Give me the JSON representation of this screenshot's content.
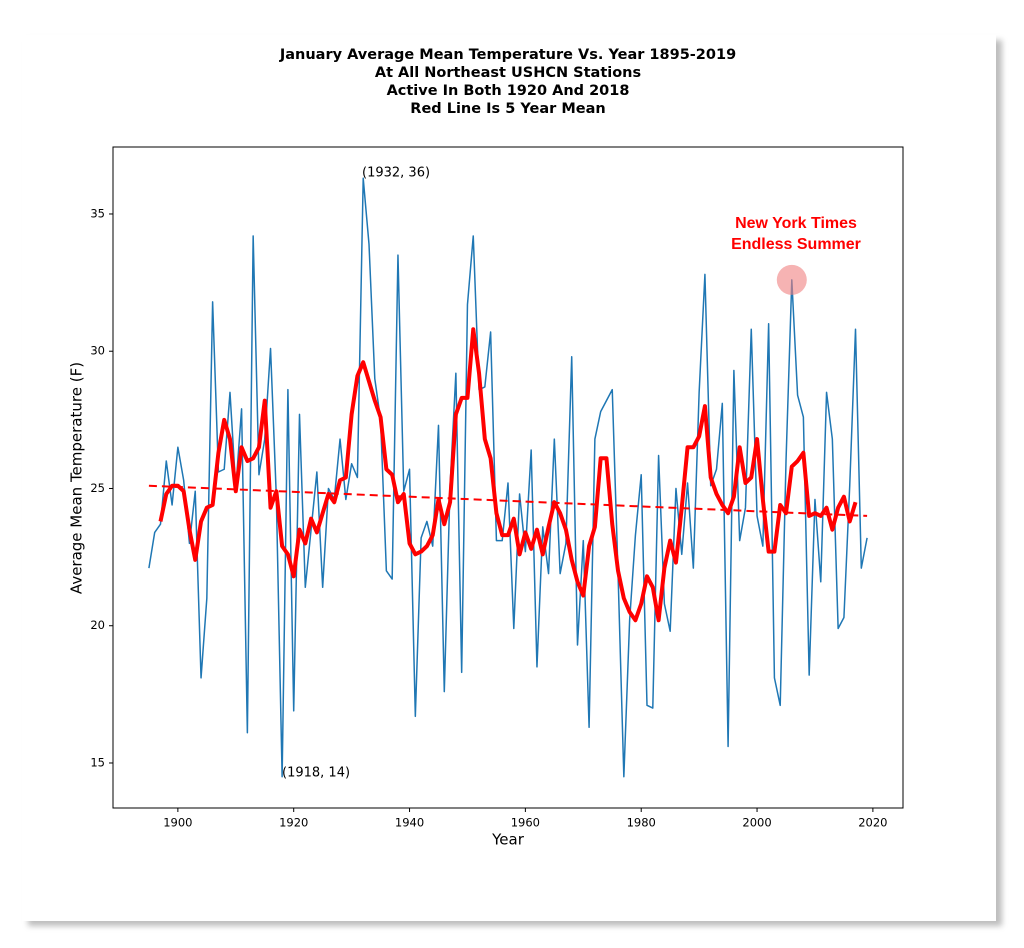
{
  "chart_data": {
    "type": "line",
    "title": [
      "January Average Mean Temperature Vs. Year 1895-2019",
      "At All Northeast USHCN Stations",
      "Active In Both 1920 And 2018",
      "Red Line Is 5 Year Mean"
    ],
    "xlabel": "Year",
    "ylabel": "Average Mean Temperature (F)",
    "xlim": [
      1888.8,
      2025.2
    ],
    "ylim": [
      13.36,
      37.44
    ],
    "xticks": [
      1900,
      1920,
      1940,
      1960,
      1980,
      2000,
      2020
    ],
    "yticks": [
      15,
      20,
      25,
      30,
      35
    ],
    "annotations": [
      "(1932, 36)",
      "(1918, 14)"
    ],
    "highlight": [
      "New York Times",
      "Endless Summer"
    ],
    "series": [
      {
        "color": "#1f77b4",
        "width": 1.5,
        "dashed": false,
        "x": [
          1895,
          1896,
          1897,
          1898,
          1899,
          1900,
          1901,
          1902,
          1903,
          1904,
          1905,
          1906,
          1907,
          1908,
          1909,
          1910,
          1911,
          1912,
          1913,
          1914,
          1915,
          1916,
          1917,
          1918,
          1919,
          1920,
          1921,
          1922,
          1923,
          1924,
          1925,
          1926,
          1927,
          1928,
          1929,
          1930,
          1931,
          1932,
          1933,
          1934,
          1935,
          1936,
          1937,
          1938,
          1939,
          1940,
          1941,
          1942,
          1943,
          1944,
          1945,
          1946,
          1947,
          1948,
          1949,
          1950,
          1951,
          1952,
          1953,
          1954,
          1955,
          1956,
          1957,
          1958,
          1959,
          1960,
          1961,
          1962,
          1963,
          1964,
          1965,
          1966,
          1967,
          1968,
          1969,
          1970,
          1971,
          1972,
          1973,
          1974,
          1975,
          1976,
          1977,
          1978,
          1979,
          1980,
          1981,
          1982,
          1983,
          1984,
          1985,
          1986,
          1987,
          1988,
          1989,
          1990,
          1991,
          1992,
          1993,
          1994,
          1995,
          1996,
          1997,
          1998,
          1999,
          2000,
          2001,
          2002,
          2003,
          2004,
          2005,
          2006,
          2007,
          2008,
          2009,
          2010,
          2011,
          2012,
          2013,
          2014,
          2015,
          2016,
          2017,
          2018,
          2019
        ],
        "values": [
          22.1,
          23.4,
          23.7,
          26.0,
          24.4,
          26.5,
          25.3,
          23.0,
          24.9,
          18.1,
          21.0,
          31.8,
          25.6,
          25.7,
          28.5,
          25.0,
          27.9,
          16.1,
          34.2,
          25.5,
          26.8,
          30.1,
          24.7,
          14.5,
          28.6,
          16.9,
          27.7,
          21.4,
          23.5,
          25.6,
          21.4,
          25.0,
          24.6,
          26.8,
          24.6,
          25.9,
          25.4,
          36.3,
          33.9,
          29.0,
          27.5,
          22.0,
          21.7,
          33.5,
          24.9,
          25.7,
          16.7,
          23.2,
          23.8,
          22.9,
          27.3,
          17.6,
          25.1,
          29.2,
          18.3,
          31.7,
          34.2,
          28.6,
          28.7,
          30.7,
          23.1,
          23.1,
          25.2,
          19.9,
          24.8,
          22.7,
          26.4,
          18.5,
          23.6,
          21.9,
          26.8,
          21.9,
          23.0,
          29.8,
          19.3,
          23.1,
          16.3,
          26.8,
          27.8,
          28.2,
          28.6,
          21.9,
          14.5,
          20.2,
          23.3,
          25.5,
          17.1,
          17.0,
          26.2,
          20.8,
          19.8,
          25.0,
          22.6,
          25.2,
          22.1,
          28.5,
          32.8,
          25.1,
          25.7,
          28.1,
          15.6,
          29.3,
          23.1,
          24.3,
          30.8,
          24.0,
          22.9,
          31.0,
          18.1,
          17.1,
          26.0,
          32.6,
          28.4,
          27.6,
          18.2,
          24.6,
          21.6,
          28.5,
          26.8,
          19.9,
          20.3,
          25.1,
          30.8,
          22.1,
          23.2
        ]
      },
      {
        "color": "#ff0000",
        "width": 4,
        "dashed": false,
        "x": [
          1897,
          1898,
          1899,
          1900,
          1901,
          1902,
          1903,
          1904,
          1905,
          1906,
          1907,
          1908,
          1909,
          1910,
          1911,
          1912,
          1913,
          1914,
          1915,
          1916,
          1917,
          1918,
          1919,
          1920,
          1921,
          1922,
          1923,
          1924,
          1925,
          1926,
          1927,
          1928,
          1929,
          1930,
          1931,
          1932,
          1933,
          1934,
          1935,
          1936,
          1937,
          1938,
          1939,
          1940,
          1941,
          1942,
          1943,
          1944,
          1945,
          1946,
          1947,
          1948,
          1949,
          1950,
          1951,
          1952,
          1953,
          1954,
          1955,
          1956,
          1957,
          1958,
          1959,
          1960,
          1961,
          1962,
          1963,
          1964,
          1965,
          1966,
          1967,
          1968,
          1969,
          1970,
          1971,
          1972,
          1973,
          1974,
          1975,
          1976,
          1977,
          1978,
          1979,
          1980,
          1981,
          1982,
          1983,
          1984,
          1985,
          1986,
          1987,
          1988,
          1989,
          1990,
          1991,
          1992,
          1993,
          1994,
          1995,
          1996,
          1997,
          1998,
          1999,
          2000,
          2001,
          2002,
          2003,
          2004,
          2005,
          2006,
          2007,
          2008,
          2009,
          2010,
          2011,
          2012,
          2013,
          2014,
          2015,
          2016,
          2017
        ],
        "values": [
          23.8,
          24.8,
          25.1,
          25.1,
          24.9,
          23.5,
          22.4,
          23.8,
          24.3,
          24.4,
          26.3,
          27.5,
          26.8,
          24.9,
          26.5,
          26.0,
          26.1,
          26.5,
          28.2,
          24.3,
          24.9,
          22.9,
          22.6,
          21.8,
          23.5,
          23.0,
          23.9,
          23.4,
          24.1,
          24.8,
          24.5,
          25.3,
          25.4,
          27.7,
          29.1,
          29.6,
          28.9,
          28.2,
          27.6,
          25.7,
          25.5,
          24.5,
          24.8,
          23.0,
          22.6,
          22.7,
          22.9,
          23.3,
          24.6,
          23.7,
          24.5,
          27.7,
          28.3,
          28.3,
          30.8,
          29.2,
          26.8,
          26.1,
          24.1,
          23.3,
          23.3,
          23.9,
          22.6,
          23.4,
          22.8,
          23.5,
          22.6,
          23.6,
          24.5,
          24.1,
          23.5,
          22.4,
          21.6,
          21.1,
          22.9,
          23.6,
          26.1,
          26.1,
          23.7,
          22.0,
          21.0,
          20.5,
          20.2,
          20.8,
          21.8,
          21.4,
          20.2,
          22.1,
          23.1,
          22.3,
          24.3,
          26.5,
          26.5,
          26.9,
          28.0,
          25.4,
          24.8,
          24.4,
          24.1,
          24.7,
          26.5,
          25.2,
          25.4,
          26.8,
          24.6,
          22.7,
          22.7,
          24.4,
          24.1,
          25.8,
          26.0,
          26.3,
          24.0,
          24.1,
          24.0,
          24.3,
          23.5,
          24.3,
          24.7,
          23.8,
          24.5
        ]
      },
      {
        "color": "#ff0000",
        "width": 2,
        "dashed": true,
        "x": [
          1895,
          2019
        ],
        "values": [
          25.1,
          24.0
        ]
      }
    ]
  }
}
